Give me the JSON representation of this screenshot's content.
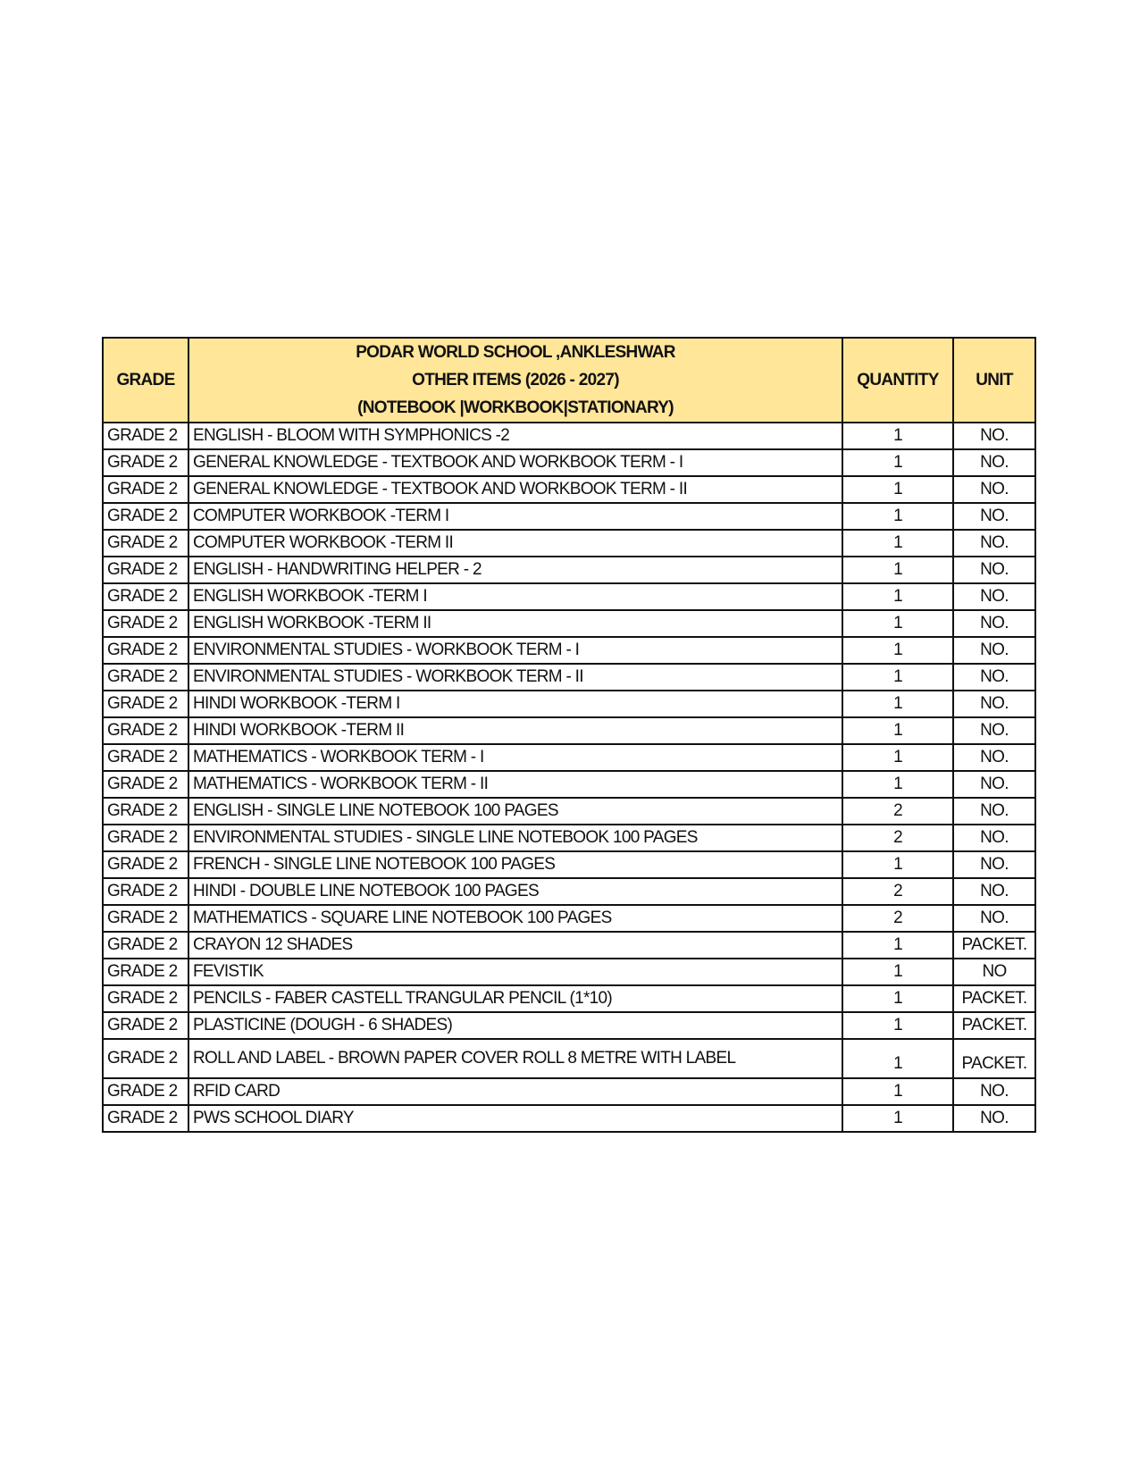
{
  "header": {
    "grade": "GRADE",
    "title_lines": [
      "PODAR WORLD SCHOOL ,ANKLESHWAR",
      "OTHER ITEMS (2026 - 2027)",
      "(NOTEBOOK |WORKBOOK|STATIONARY)"
    ],
    "quantity": "QUANTITY",
    "unit": "UNIT"
  },
  "header_color": "#FFE699",
  "rows": [
    {
      "grade": "GRADE 2",
      "item": "ENGLISH - BLOOM WITH SYMPHONICS -2",
      "qty": "1",
      "unit": "NO."
    },
    {
      "grade": "GRADE 2",
      "item": "GENERAL KNOWLEDGE - TEXTBOOK AND WORKBOOK TERM - I",
      "qty": "1",
      "unit": "NO."
    },
    {
      "grade": "GRADE 2",
      "item": "GENERAL KNOWLEDGE - TEXTBOOK AND WORKBOOK TERM - II",
      "qty": "1",
      "unit": "NO."
    },
    {
      "grade": "GRADE 2",
      "item": "COMPUTER WORKBOOK -TERM I",
      "qty": "1",
      "unit": "NO."
    },
    {
      "grade": "GRADE 2",
      "item": "COMPUTER WORKBOOK -TERM II",
      "qty": "1",
      "unit": "NO."
    },
    {
      "grade": "GRADE 2",
      "item": "ENGLISH - HANDWRITING HELPER - 2",
      "qty": "1",
      "unit": "NO."
    },
    {
      "grade": "GRADE 2",
      "item": "ENGLISH WORKBOOK -TERM I",
      "qty": "1",
      "unit": "NO."
    },
    {
      "grade": "GRADE 2",
      "item": "ENGLISH WORKBOOK -TERM II",
      "qty": "1",
      "unit": "NO."
    },
    {
      "grade": "GRADE 2",
      "item": "ENVIRONMENTAL STUDIES - WORKBOOK TERM - I",
      "qty": "1",
      "unit": "NO."
    },
    {
      "grade": "GRADE 2",
      "item": "ENVIRONMENTAL STUDIES - WORKBOOK TERM - II",
      "qty": "1",
      "unit": "NO."
    },
    {
      "grade": "GRADE 2",
      "item": "HINDI WORKBOOK -TERM I",
      "qty": "1",
      "unit": "NO."
    },
    {
      "grade": "GRADE 2",
      "item": "HINDI WORKBOOK -TERM II",
      "qty": "1",
      "unit": "NO."
    },
    {
      "grade": "GRADE 2",
      "item": "MATHEMATICS - WORKBOOK TERM - I",
      "qty": "1",
      "unit": "NO."
    },
    {
      "grade": "GRADE 2",
      "item": "MATHEMATICS - WORKBOOK TERM - II",
      "qty": "1",
      "unit": "NO."
    },
    {
      "grade": "GRADE 2",
      "item": "ENGLISH - SINGLE LINE NOTEBOOK 100 PAGES",
      "qty": "2",
      "unit": "NO."
    },
    {
      "grade": "GRADE 2",
      "item": "ENVIRONMENTAL STUDIES - SINGLE LINE NOTEBOOK 100 PAGES",
      "qty": "2",
      "unit": "NO."
    },
    {
      "grade": "GRADE 2",
      "item": "FRENCH - SINGLE LINE NOTEBOOK 100 PAGES",
      "qty": "1",
      "unit": "NO."
    },
    {
      "grade": "GRADE 2",
      "item": "HINDI - DOUBLE LINE NOTEBOOK 100 PAGES",
      "qty": "2",
      "unit": "NO."
    },
    {
      "grade": "GRADE 2",
      "item": "MATHEMATICS - SQUARE LINE NOTEBOOK 100 PAGES",
      "qty": "2",
      "unit": "NO."
    },
    {
      "grade": "GRADE 2",
      "item": "CRAYON 12 SHADES",
      "qty": "1",
      "unit": "PACKET."
    },
    {
      "grade": "GRADE 2",
      "item": "FEVISTIK",
      "qty": "1",
      "unit": "NO"
    },
    {
      "grade": "GRADE 2",
      "item": "PENCILS - FABER CASTELL TRANGULAR PENCIL (1*10)",
      "qty": "1",
      "unit": "PACKET."
    },
    {
      "grade": "GRADE 2",
      "item": "PLASTICINE (DOUGH - 6 SHADES)",
      "qty": "1",
      "unit": "PACKET."
    },
    {
      "grade": "GRADE 2",
      "item": "ROLL AND LABEL - BROWN PAPER COVER ROLL 8 METRE WITH LABEL",
      "qty": "1",
      "unit": "PACKET."
    },
    {
      "grade": "GRADE 2",
      "item": "RFID CARD",
      "qty": "1",
      "unit": "NO."
    },
    {
      "grade": "GRADE 2",
      "item": "PWS SCHOOL DIARY",
      "qty": "1",
      "unit": "NO."
    }
  ]
}
